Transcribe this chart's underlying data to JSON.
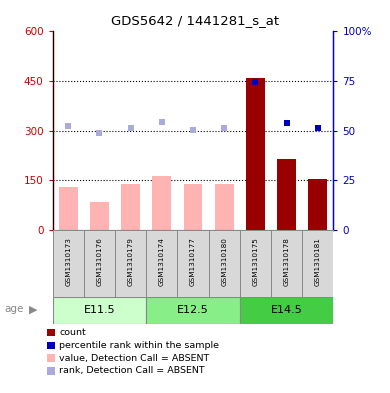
{
  "title": "GDS5642 / 1441281_s_at",
  "samples": [
    "GSM1310173",
    "GSM1310176",
    "GSM1310179",
    "GSM1310174",
    "GSM1310177",
    "GSM1310180",
    "GSM1310175",
    "GSM1310178",
    "GSM1310181"
  ],
  "groups": [
    {
      "label": "E11.5",
      "indices": [
        0,
        1,
        2
      ]
    },
    {
      "label": "E12.5",
      "indices": [
        3,
        4,
        5
      ]
    },
    {
      "label": "E14.5",
      "indices": [
        6,
        7,
        8
      ]
    }
  ],
  "group_colors": [
    "#ccffcc",
    "#88ee88",
    "#44cc44"
  ],
  "bar_values_absent": [
    130,
    85,
    138,
    162,
    138,
    138,
    null,
    null,
    null
  ],
  "bar_values_present": [
    null,
    null,
    null,
    null,
    null,
    null,
    460,
    215,
    155
  ],
  "bar_color_absent": "#ffb3b3",
  "bar_color_present": "#990000",
  "rank_absent": [
    315,
    293,
    307,
    327,
    303,
    307,
    null,
    null,
    null
  ],
  "rank_present": [
    null,
    null,
    null,
    null,
    null,
    null,
    447,
    323,
    308
  ],
  "rank_absent_color": "#aaaadd",
  "rank_present_color": "#0000bb",
  "ylim_left": [
    0,
    600
  ],
  "ylim_right": [
    0,
    100
  ],
  "yticks_left": [
    0,
    150,
    300,
    450,
    600
  ],
  "yticks_right": [
    0,
    25,
    50,
    75,
    100
  ],
  "ytick_labels_left": [
    "0",
    "150",
    "300",
    "450",
    "600"
  ],
  "ytick_labels_right": [
    "0",
    "25",
    "50",
    "75",
    "100%"
  ],
  "left_axis_color": "#cc0000",
  "right_axis_color": "#0000cc",
  "dotted_lines": [
    150,
    300,
    450
  ],
  "legend_items": [
    {
      "color": "#990000",
      "label": "count"
    },
    {
      "color": "#0000bb",
      "label": "percentile rank within the sample"
    },
    {
      "color": "#ffb3b3",
      "label": "value, Detection Call = ABSENT"
    },
    {
      "color": "#aaaadd",
      "label": "rank, Detection Call = ABSENT"
    }
  ]
}
